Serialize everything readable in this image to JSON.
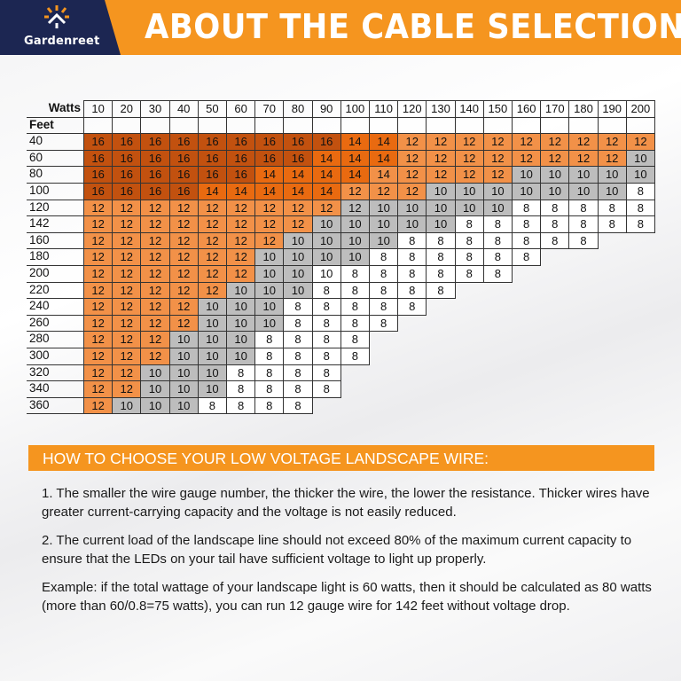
{
  "header": {
    "brand": "Gardenreet",
    "title": "ABOUT THE CABLE SELECTION",
    "brand_color": "#1c2652",
    "accent_color": "#f5951f"
  },
  "table": {
    "corner_label": "Watts",
    "row_header_label": "Feet",
    "watts": [
      "10",
      "20",
      "30",
      "40",
      "50",
      "60",
      "70",
      "80",
      "90",
      "100",
      "110",
      "120",
      "130",
      "140",
      "150",
      "160",
      "170",
      "180",
      "190",
      "200"
    ],
    "shade_colors": {
      "16": "#c2510f",
      "14": "#e96a10",
      "12": "#f29148",
      "10": "#bdbdbd",
      "8": "#ffffff"
    },
    "rows": [
      {
        "feet": "40",
        "gauges": [
          "16",
          "16",
          "16",
          "16",
          "16",
          "16",
          "16",
          "16",
          "16",
          "14",
          "14",
          "12",
          "12",
          "12",
          "12",
          "12",
          "12",
          "12",
          "12",
          "12"
        ]
      },
      {
        "feet": "60",
        "gauges": [
          "16",
          "16",
          "16",
          "16",
          "16",
          "16",
          "16",
          "16",
          "14",
          "14",
          "14",
          "12",
          "12",
          "12",
          "12",
          "12",
          "12",
          "12",
          "12",
          "10"
        ]
      },
      {
        "feet": "80",
        "gauges": [
          "16",
          "16",
          "16",
          "16",
          "16",
          "16",
          "14",
          "14",
          "14",
          "14",
          "14",
          "12",
          "12",
          "12",
          "12",
          "10",
          "10",
          "10",
          "10",
          "10"
        ]
      },
      {
        "feet": "100",
        "gauges": [
          "16",
          "16",
          "16",
          "16",
          "14",
          "14",
          "14",
          "14",
          "14",
          "12",
          "12",
          "12",
          "10",
          "10",
          "10",
          "10",
          "10",
          "10",
          "10",
          "8"
        ]
      },
      {
        "feet": "120",
        "gauges": [
          "12",
          "12",
          "12",
          "12",
          "12",
          "12",
          "12",
          "12",
          "12",
          "12",
          "10",
          "10",
          "10",
          "10",
          "10",
          "8",
          "8",
          "8",
          "8",
          "8"
        ]
      },
      {
        "feet": "142",
        "gauges": [
          "12",
          "12",
          "12",
          "12",
          "12",
          "12",
          "12",
          "12",
          "10",
          "10",
          "10",
          "10",
          "10",
          "8",
          "8",
          "8",
          "8",
          "8",
          "8",
          "8"
        ]
      },
      {
        "feet": "160",
        "gauges": [
          "12",
          "12",
          "12",
          "12",
          "12",
          "12",
          "12",
          "10",
          "10",
          "10",
          "10",
          "8",
          "8",
          "8",
          "8",
          "8",
          "8",
          "8"
        ]
      },
      {
        "feet": "180",
        "gauges": [
          "12",
          "12",
          "12",
          "12",
          "12",
          "12",
          "10",
          "10",
          "10",
          "10",
          "8",
          "8",
          "8",
          "8",
          "8",
          "8"
        ]
      },
      {
        "feet": "200",
        "gauges": [
          "12",
          "12",
          "12",
          "12",
          "12",
          "12",
          "10",
          "10",
          "10",
          "8",
          "8",
          "8",
          "8",
          "8",
          "8"
        ]
      },
      {
        "feet": "220",
        "gauges": [
          "12",
          "12",
          "12",
          "12",
          "12",
          "10",
          "10",
          "10",
          "8",
          "8",
          "8",
          "8",
          "8"
        ]
      },
      {
        "feet": "240",
        "gauges": [
          "12",
          "12",
          "12",
          "12",
          "10",
          "10",
          "10",
          "8",
          "8",
          "8",
          "8",
          "8"
        ]
      },
      {
        "feet": "260",
        "gauges": [
          "12",
          "12",
          "12",
          "12",
          "10",
          "10",
          "10",
          "8",
          "8",
          "8",
          "8"
        ]
      },
      {
        "feet": "280",
        "gauges": [
          "12",
          "12",
          "12",
          "10",
          "10",
          "10",
          "8",
          "8",
          "8",
          "8"
        ]
      },
      {
        "feet": "300",
        "gauges": [
          "12",
          "12",
          "12",
          "10",
          "10",
          "10",
          "8",
          "8",
          "8",
          "8"
        ]
      },
      {
        "feet": "320",
        "gauges": [
          "12",
          "12",
          "10",
          "10",
          "10",
          "8",
          "8",
          "8",
          "8"
        ]
      },
      {
        "feet": "340",
        "gauges": [
          "12",
          "12",
          "10",
          "10",
          "10",
          "8",
          "8",
          "8",
          "8"
        ]
      },
      {
        "feet": "360",
        "gauges": [
          "12",
          "10",
          "10",
          "10",
          "8",
          "8",
          "8",
          "8"
        ]
      }
    ],
    "shade_overrides": [
      {
        "feet": "80",
        "watts": "110",
        "shade": "12"
      },
      {
        "feet": "120",
        "watts": "100",
        "shade": "10"
      },
      {
        "feet": "200",
        "watts": "90",
        "shade": "8"
      }
    ]
  },
  "guide": {
    "title": "HOW TO CHOOSE YOUR LOW VOLTAGE LANDSCAPE WIRE:",
    "points": [
      "1. The smaller the wire gauge number, the thicker the wire, the lower the resistance. Thicker wires have greater current-carrying capacity and the voltage is not easily reduced.",
      "2. The current load of the landscape line should not exceed 80% of the maximum current capacity to ensure that the LEDs on your tail have sufficient voltage to light up properly.",
      "Example: if the total wattage of your landscape light is 60 watts, then it should be calculated as 80 watts (more than 60/0.8=75 watts), you can run 12 gauge wire for 142 feet without voltage drop."
    ]
  }
}
